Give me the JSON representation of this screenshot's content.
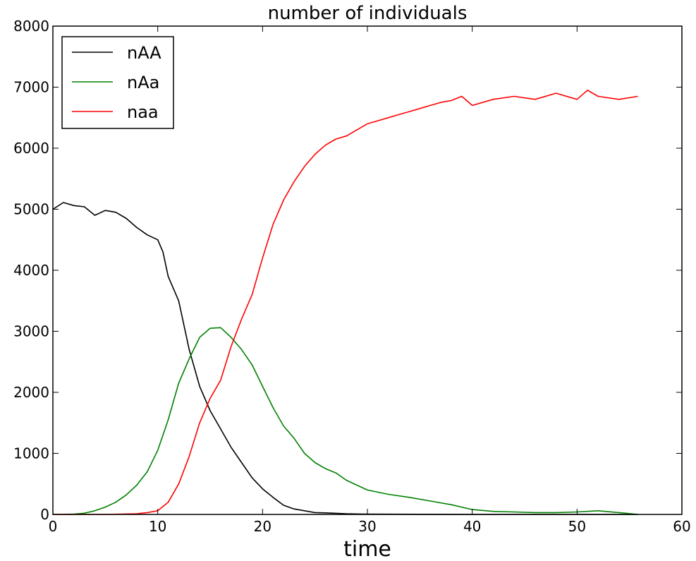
{
  "chart_data": {
    "type": "line",
    "title": "number of individuals",
    "xlabel": "time",
    "ylabel": "",
    "xlim": [
      0,
      60
    ],
    "ylim": [
      0,
      8000
    ],
    "xticks": [
      0,
      10,
      20,
      30,
      40,
      50,
      60
    ],
    "yticks": [
      0,
      1000,
      2000,
      3000,
      4000,
      5000,
      6000,
      7000,
      8000
    ],
    "grid": false,
    "legend_position": "top-left",
    "series": [
      {
        "name": "nAA",
        "color": "#000000",
        "points": [
          [
            0,
            5000
          ],
          [
            1,
            5110
          ],
          [
            2,
            5060
          ],
          [
            3,
            5040
          ],
          [
            4,
            4900
          ],
          [
            5,
            4980
          ],
          [
            6,
            4950
          ],
          [
            7,
            4850
          ],
          [
            8,
            4700
          ],
          [
            9,
            4580
          ],
          [
            10,
            4500
          ],
          [
            10.5,
            4300
          ],
          [
            11,
            3900
          ],
          [
            12,
            3500
          ],
          [
            13,
            2700
          ],
          [
            14,
            2100
          ],
          [
            15,
            1700
          ],
          [
            16,
            1400
          ],
          [
            17,
            1100
          ],
          [
            18,
            850
          ],
          [
            19,
            600
          ],
          [
            20,
            420
          ],
          [
            21,
            280
          ],
          [
            22,
            150
          ],
          [
            23,
            90
          ],
          [
            24,
            60
          ],
          [
            25,
            30
          ],
          [
            26,
            25
          ],
          [
            28,
            10
          ],
          [
            30,
            5
          ],
          [
            35,
            2
          ],
          [
            40,
            0
          ],
          [
            50,
            0
          ],
          [
            55.8,
            0
          ]
        ]
      },
      {
        "name": "nAa",
        "color": "#008000",
        "points": [
          [
            0,
            0
          ],
          [
            2,
            5
          ],
          [
            3,
            20
          ],
          [
            4,
            60
          ],
          [
            5,
            120
          ],
          [
            6,
            200
          ],
          [
            7,
            320
          ],
          [
            8,
            480
          ],
          [
            9,
            700
          ],
          [
            10,
            1050
          ],
          [
            11,
            1550
          ],
          [
            12,
            2150
          ],
          [
            13,
            2550
          ],
          [
            14,
            2900
          ],
          [
            15,
            3050
          ],
          [
            16,
            3060
          ],
          [
            17,
            2900
          ],
          [
            18,
            2700
          ],
          [
            19,
            2450
          ],
          [
            20,
            2100
          ],
          [
            21,
            1750
          ],
          [
            22,
            1450
          ],
          [
            23,
            1250
          ],
          [
            24,
            1000
          ],
          [
            25,
            850
          ],
          [
            26,
            750
          ],
          [
            27,
            680
          ],
          [
            28,
            560
          ],
          [
            29,
            480
          ],
          [
            30,
            400
          ],
          [
            32,
            330
          ],
          [
            34,
            280
          ],
          [
            36,
            220
          ],
          [
            38,
            160
          ],
          [
            40,
            80
          ],
          [
            42,
            50
          ],
          [
            44,
            40
          ],
          [
            46,
            30
          ],
          [
            48,
            30
          ],
          [
            50,
            40
          ],
          [
            52,
            60
          ],
          [
            54,
            30
          ],
          [
            55.8,
            0
          ]
        ]
      },
      {
        "name": "naa",
        "color": "#ff0000",
        "points": [
          [
            0,
            0
          ],
          [
            5,
            0
          ],
          [
            8,
            10
          ],
          [
            9,
            30
          ],
          [
            10,
            60
          ],
          [
            11,
            200
          ],
          [
            12,
            500
          ],
          [
            13,
            950
          ],
          [
            14,
            1500
          ],
          [
            15,
            1900
          ],
          [
            16,
            2200
          ],
          [
            17,
            2750
          ],
          [
            18,
            3200
          ],
          [
            19,
            3600
          ],
          [
            20,
            4200
          ],
          [
            21,
            4750
          ],
          [
            22,
            5150
          ],
          [
            23,
            5450
          ],
          [
            24,
            5700
          ],
          [
            25,
            5900
          ],
          [
            26,
            6050
          ],
          [
            27,
            6150
          ],
          [
            28,
            6200
          ],
          [
            29,
            6300
          ],
          [
            30,
            6400
          ],
          [
            31,
            6450
          ],
          [
            32,
            6500
          ],
          [
            33,
            6550
          ],
          [
            34,
            6600
          ],
          [
            35,
            6650
          ],
          [
            36,
            6700
          ],
          [
            37,
            6750
          ],
          [
            38,
            6780
          ],
          [
            39,
            6850
          ],
          [
            40,
            6700
          ],
          [
            42,
            6800
          ],
          [
            44,
            6850
          ],
          [
            46,
            6800
          ],
          [
            48,
            6900
          ],
          [
            50,
            6800
          ],
          [
            51,
            6950
          ],
          [
            52,
            6850
          ],
          [
            54,
            6800
          ],
          [
            55.8,
            6850
          ]
        ]
      }
    ]
  }
}
